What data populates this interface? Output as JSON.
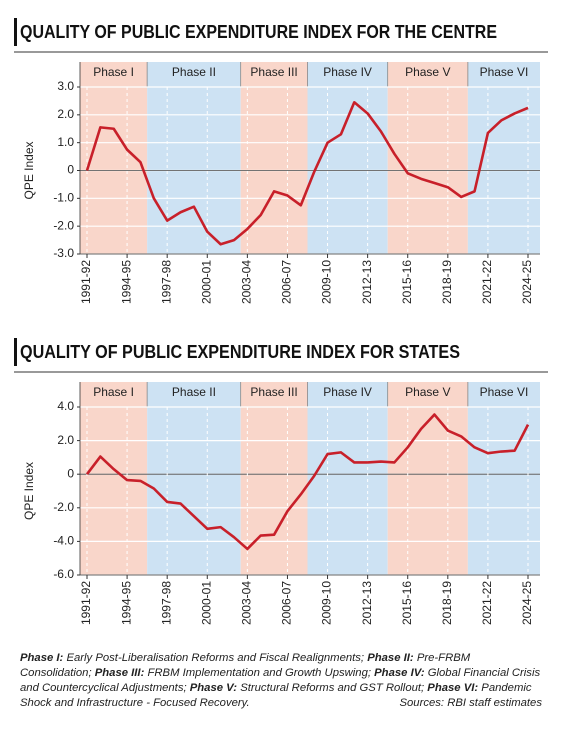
{
  "chart_data": [
    {
      "type": "line",
      "title": "QUALITY OF PUBLIC EXPENDITURE INDEX FOR THE CENTRE",
      "ylabel": "QPE Index",
      "categories": [
        "1991-92",
        null,
        null,
        "1994-95",
        null,
        null,
        "1997-98",
        null,
        null,
        "2000-01",
        null,
        null,
        "2003-04",
        null,
        null,
        "2006-07",
        null,
        null,
        "2009-10",
        null,
        null,
        "2012-13",
        null,
        null,
        "2015-16",
        null,
        null,
        "2018-19",
        null,
        null,
        "2021-22",
        null,
        null,
        "2024-25"
      ],
      "series": [
        {
          "color": "#c8202a",
          "values": [
            0.0,
            1.55,
            1.5,
            0.75,
            0.3,
            -1.0,
            -1.8,
            -1.5,
            -1.3,
            -2.2,
            -2.65,
            -2.5,
            -2.1,
            -1.6,
            -0.75,
            -0.9,
            -1.25,
            -0.05,
            1.0,
            1.3,
            2.45,
            2.05,
            1.4,
            0.6,
            -0.1,
            -0.3,
            -0.45,
            -0.6,
            -0.95,
            -0.75,
            1.35,
            1.8,
            2.05,
            2.25
          ]
        }
      ],
      "phases": [
        {
          "label": "Phase I",
          "color": "#f9d6ca",
          "span": [
            -0.5,
            4.5
          ]
        },
        {
          "label": "Phase II",
          "color": "#cde2f3",
          "span": [
            4.5,
            11.5
          ]
        },
        {
          "label": "Phase III",
          "color": "#f9d6ca",
          "span": [
            11.5,
            16.5
          ]
        },
        {
          "label": "Phase IV",
          "color": "#cde2f3",
          "span": [
            16.5,
            22.5
          ]
        },
        {
          "label": "Phase V",
          "color": "#f9d6ca",
          "span": [
            22.5,
            28.5
          ]
        },
        {
          "label": "Phase VI",
          "color": "#cde2f3",
          "span": [
            28.5,
            33.5
          ]
        }
      ],
      "ylim": [
        -3,
        3
      ],
      "yticks": [
        {
          "value": 3,
          "label": "3.0"
        },
        {
          "value": 2,
          "label": "2.0"
        },
        {
          "value": 1,
          "label": "1.0"
        },
        0,
        {
          "value": -1,
          "label": "-1.0"
        },
        {
          "value": -2,
          "label": "-2.0"
        },
        {
          "value": -3,
          "label": "-3.0"
        }
      ],
      "grid": true
    },
    {
      "type": "line",
      "title": "QUALITY OF PUBLIC EXPENDITURE INDEX FOR STATES",
      "ylabel": "QPE Index",
      "categories": [
        "1991-92",
        null,
        null,
        "1994-95",
        null,
        null,
        "1997-98",
        null,
        null,
        "2000-01",
        null,
        null,
        "2003-04",
        null,
        null,
        "2006-07",
        null,
        null,
        "2009-10",
        null,
        null,
        "2012-13",
        null,
        null,
        "2015-16",
        null,
        null,
        "2018-19",
        null,
        null,
        "2021-22",
        null,
        null,
        "2024-25"
      ],
      "series": [
        {
          "color": "#c8202a",
          "values": [
            0.0,
            1.05,
            0.3,
            -0.35,
            -0.4,
            -0.85,
            -1.65,
            -1.75,
            -2.5,
            -3.25,
            -3.15,
            -3.75,
            -4.45,
            -3.65,
            -3.6,
            -2.2,
            -1.2,
            -0.1,
            1.2,
            1.3,
            0.7,
            0.7,
            0.75,
            0.7,
            1.6,
            2.7,
            3.55,
            2.6,
            2.25,
            1.6,
            1.25,
            1.35,
            1.4,
            2.95
          ]
        }
      ],
      "phases": [
        {
          "label": "Phase I",
          "color": "#f9d6ca",
          "span": [
            -0.5,
            4.5
          ]
        },
        {
          "label": "Phase II",
          "color": "#cde2f3",
          "span": [
            4.5,
            11.5
          ]
        },
        {
          "label": "Phase III",
          "color": "#f9d6ca",
          "span": [
            11.5,
            16.5
          ]
        },
        {
          "label": "Phase IV",
          "color": "#cde2f3",
          "span": [
            16.5,
            22.5
          ]
        },
        {
          "label": "Phase V",
          "color": "#f9d6ca",
          "span": [
            22.5,
            28.5
          ]
        },
        {
          "label": "Phase VI",
          "color": "#cde2f3",
          "span": [
            28.5,
            33.5
          ]
        }
      ],
      "ylim": [
        -6,
        4
      ],
      "yticks": [
        {
          "value": 4,
          "label": "4.0"
        },
        {
          "value": 2,
          "label": "2.0"
        },
        0,
        {
          "value": -2,
          "label": "-2.0"
        },
        {
          "value": -4,
          "label": "-4.0"
        },
        {
          "value": -6,
          "label": "-6.0"
        }
      ],
      "grid": true
    }
  ],
  "notes": [
    {
      "term": "Phase I:",
      "text": " Early Post-Liberalisation Reforms and Fiscal Realignments; "
    },
    {
      "term": "Phase II:",
      "text": " Pre-FRBM Consolidation; "
    },
    {
      "term": "Phase III:",
      "text": " FRBM Implementation and Growth Upswing; "
    },
    {
      "term": "Phase IV:",
      "text": " Global Financial Crisis and Countercyclical Adjustments; "
    },
    {
      "term": "Phase V:",
      "text": " Structural Reforms and GST Rollout; "
    },
    {
      "term": "Phase VI:",
      "text": " Pandemic Shock and Infrastructure - Focused Recovery."
    }
  ],
  "source": "Sources: RBI staff estimates"
}
